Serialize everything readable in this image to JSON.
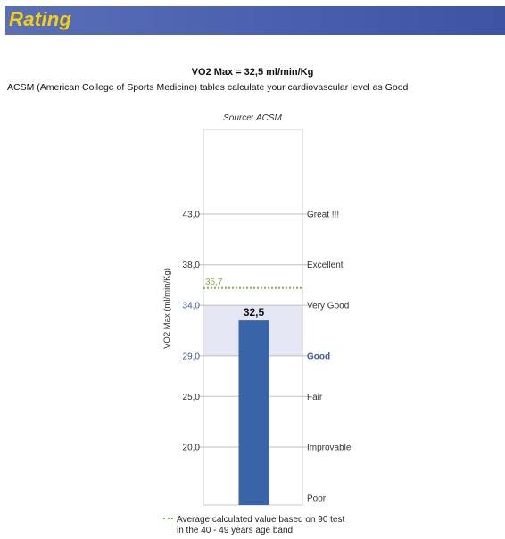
{
  "header": {
    "title": "Rating"
  },
  "summary": {
    "vo2_line": "VO2 Max = 32,5 ml/min/Kg",
    "description": "ACSM (American College of Sports Medicine) tables calculate your cardiovascular level as Good"
  },
  "legend": {
    "line1": "Average calculated value based on 90 test",
    "line2": "in the 40 - 49 years age band"
  },
  "colors": {
    "header_bg": "#4a5fae",
    "header_text": "#f4d10a",
    "bar": "#3a64a8",
    "band": "#e4e6f4",
    "average_line": "#7ab648",
    "highlight_text": "#3a5a9c"
  },
  "chart_data": {
    "type": "bar",
    "title": "Source: ACSM",
    "ylabel": "VO2 Max (ml/min/Kg)",
    "value": 32.5,
    "value_label": "32,5",
    "average": 35.7,
    "average_label": "35,7",
    "highlight_band": [
      29.0,
      34.0
    ],
    "ticks": [
      {
        "value": 20.0,
        "label": "20,0",
        "highlight": false
      },
      {
        "value": 25.0,
        "label": "25,0",
        "highlight": false
      },
      {
        "value": 29.0,
        "label": "29,0",
        "highlight": true
      },
      {
        "value": 34.0,
        "label": "34,0",
        "highlight": true
      },
      {
        "value": 38.0,
        "label": "38,0",
        "highlight": false
      },
      {
        "value": 43.0,
        "label": "43,0",
        "highlight": false
      }
    ],
    "categories": [
      {
        "label": "Poor",
        "value": 15.0,
        "highlight": false
      },
      {
        "label": "Improvable",
        "value": 20.0,
        "highlight": false
      },
      {
        "label": "Fair",
        "value": 25.0,
        "highlight": false
      },
      {
        "label": "Good",
        "value": 29.0,
        "highlight": true
      },
      {
        "label": "Very Good",
        "value": 34.0,
        "highlight": false
      },
      {
        "label": "Excellent",
        "value": 38.0,
        "highlight": false
      },
      {
        "label": "Great !!!",
        "value": 43.0,
        "highlight": false
      }
    ]
  }
}
